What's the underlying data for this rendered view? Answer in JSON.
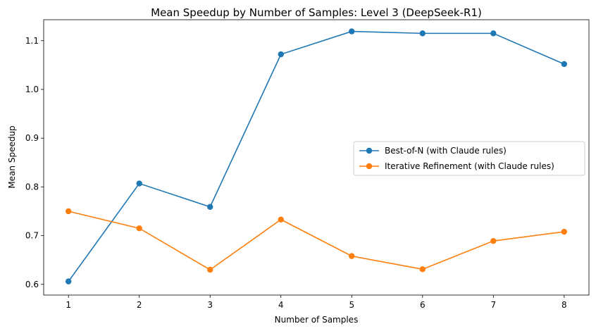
{
  "chart_data": {
    "type": "line",
    "title": "Mean Speedup by Number of Samples: Level 3 (DeepSeek-R1)",
    "xlabel": "Number of Samples",
    "ylabel": "Mean Speedup",
    "x": [
      1,
      2,
      3,
      4,
      5,
      6,
      7,
      8
    ],
    "x_ticks": [
      "1",
      "2",
      "3",
      "4",
      "5",
      "6",
      "7",
      "8"
    ],
    "y_ticks": [
      "0.6",
      "0.7",
      "0.8",
      "0.9",
      "1.0",
      "1.1"
    ],
    "xlim": [
      0.65,
      8.35
    ],
    "ylim": [
      0.578,
      1.143
    ],
    "grid": false,
    "legend_position": "center-right",
    "series": [
      {
        "name": "Best-of-N (with Claude rules)",
        "color": "#1f77b4",
        "values": [
          0.606,
          0.807,
          0.759,
          1.072,
          1.119,
          1.115,
          1.115,
          1.052
        ]
      },
      {
        "name": "Iterative Refinement (with Claude rules)",
        "color": "#ff7f0e",
        "values": [
          0.75,
          0.715,
          0.63,
          0.733,
          0.658,
          0.631,
          0.689,
          0.708
        ]
      }
    ]
  }
}
